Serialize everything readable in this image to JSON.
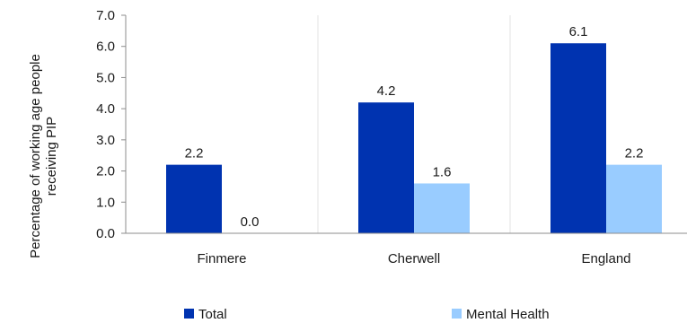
{
  "chart_data": {
    "type": "bar",
    "title": "",
    "xlabel": "",
    "ylabel_lines": [
      "Percentage of working age people",
      "receiving PIP"
    ],
    "categories": [
      "Finmere",
      "Cherwell",
      "England"
    ],
    "series": [
      {
        "name": "Total",
        "values": [
          2.2,
          4.2,
          6.1
        ],
        "labels": [
          "2.2",
          "4.2",
          "6.1"
        ],
        "color": "#0033b0"
      },
      {
        "name": "Mental Health",
        "values": [
          0.0,
          1.6,
          2.2
        ],
        "labels": [
          "0.0",
          "1.6",
          "2.2"
        ],
        "color": "#99ccff"
      }
    ],
    "ylim": [
      0,
      7
    ],
    "yticks": [
      "0.0",
      "1.0",
      "2.0",
      "3.0",
      "4.0",
      "5.0",
      "6.0",
      "7.0"
    ],
    "grid": "vertical category separators",
    "legend": "bottom"
  }
}
